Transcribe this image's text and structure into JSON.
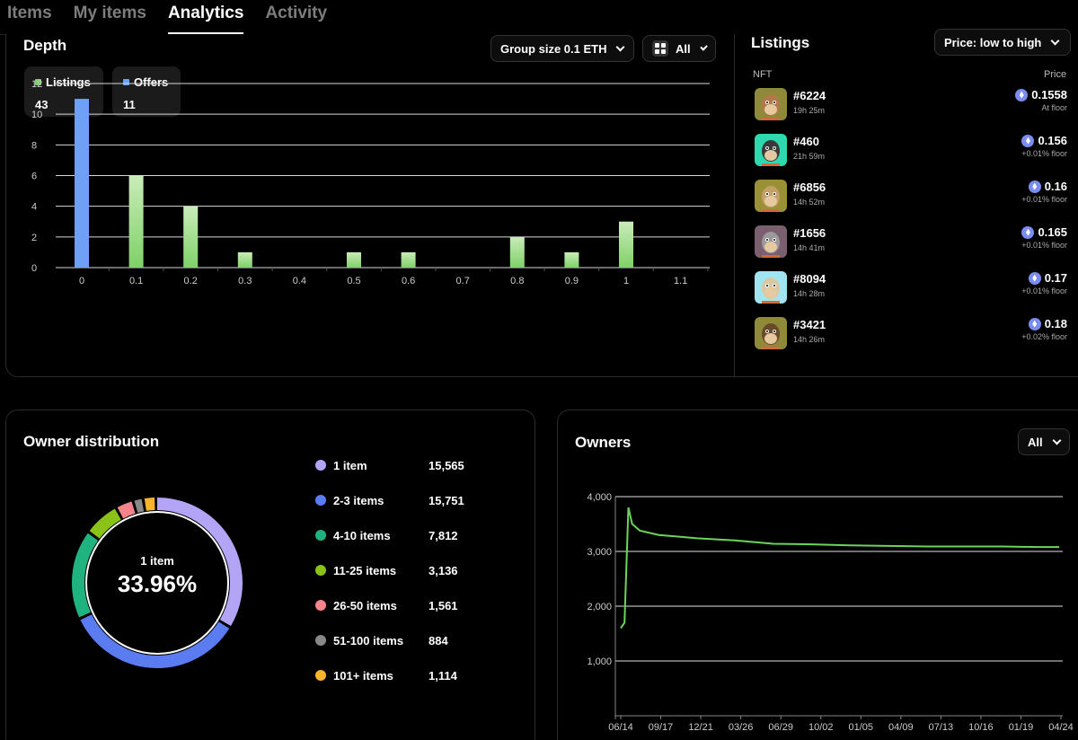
{
  "tabs": [
    "Items",
    "My items",
    "Analytics",
    "Activity"
  ],
  "depth": {
    "title": "Depth",
    "group_size": "Group size 0.1 ETH",
    "filter": "All",
    "listings_label": "Listings",
    "listings_count": "43",
    "offers_label": "Offers",
    "offers_count": "11",
    "colors": {
      "listings": "#7fd168",
      "offers": "#6ea1f5"
    }
  },
  "chart_data": [
    {
      "type": "bar",
      "title": "Depth",
      "categories": [
        "0",
        "0.1",
        "0.2",
        "0.3",
        "0.4",
        "0.5",
        "0.6",
        "0.7",
        "0.8",
        "0.9",
        "1",
        "1.1"
      ],
      "series": [
        {
          "name": "Offers",
          "values": [
            11,
            0,
            0,
            0,
            0,
            0,
            0,
            0,
            0,
            0,
            0,
            0
          ]
        },
        {
          "name": "Listings",
          "values": [
            0,
            6,
            4,
            1,
            0,
            1,
            1,
            0,
            2,
            1,
            3,
            0
          ]
        }
      ],
      "yticks": [
        "0",
        "2",
        "4",
        "6",
        "8",
        "10",
        "12"
      ],
      "ylim": [
        0,
        12
      ],
      "grid": true
    },
    {
      "type": "pie",
      "title": "Owner distribution",
      "center_label": "1 item",
      "center_value": "33.96%",
      "slices": [
        {
          "label": "1 item",
          "value": 15565,
          "display": "15,565",
          "color": "#b3a4f5"
        },
        {
          "label": "2-3 items",
          "value": 15751,
          "display": "15,751",
          "color": "#5b7cf0"
        },
        {
          "label": "4-10 items",
          "value": 7812,
          "display": "7,812",
          "color": "#1fb37f"
        },
        {
          "label": "11-25 items",
          "value": 3136,
          "display": "3,136",
          "color": "#8ac217"
        },
        {
          "label": "26-50 items",
          "value": 1561,
          "display": "1,561",
          "color": "#f7848a"
        },
        {
          "label": "51-100 items",
          "value": 884,
          "display": "884",
          "color": "#888888"
        },
        {
          "label": "101+ items",
          "value": 1114,
          "display": "1,114",
          "color": "#f9b52c"
        }
      ]
    },
    {
      "type": "line",
      "title": "Owners",
      "filter": "All",
      "x_ticks": [
        "06/14",
        "09/17",
        "12/21",
        "03/26",
        "06/29",
        "10/02",
        "01/05",
        "04/09",
        "07/13",
        "10/16",
        "01/19",
        "04/24"
      ],
      "yticks": [
        "1,000",
        "2,000",
        "3,000",
        "4,000"
      ],
      "ylim": [
        0,
        4000
      ],
      "grid": true,
      "color": "#6bd45a",
      "x": [
        0,
        0.1,
        0.2,
        0.3,
        0.5,
        1,
        1.5,
        2,
        3,
        4,
        5,
        6,
        7,
        8,
        9,
        10,
        10.9,
        11,
        11.5
      ],
      "y": [
        1600,
        1700,
        3800,
        3500,
        3380,
        3300,
        3270,
        3240,
        3200,
        3140,
        3130,
        3110,
        3100,
        3090,
        3090,
        3090,
        3080,
        3080,
        3080
      ]
    }
  ],
  "listings": {
    "title": "Listings",
    "sort": "Price: low to high",
    "col_nft": "NFT",
    "col_price": "Price",
    "rows": [
      {
        "name": "#6224",
        "time": "19h 25m",
        "price": "0.1558",
        "note": "At floor",
        "bg": "#8f8a3a",
        "fur": "#b07a4a"
      },
      {
        "name": "#460",
        "time": "21h 59m",
        "price": "0.156",
        "note": "+0.01% floor",
        "bg": "#2ed9b0",
        "fur": "#3a3a3a"
      },
      {
        "name": "#6856",
        "time": "14h 52m",
        "price": "0.16",
        "note": "+0.01% floor",
        "bg": "#9a9036",
        "fur": "#c3a06a"
      },
      {
        "name": "#1656",
        "time": "14h 41m",
        "price": "0.165",
        "note": "+0.01% floor",
        "bg": "#7b5f6f",
        "fur": "#9a9a9a"
      },
      {
        "name": "#8094",
        "time": "14h 28m",
        "price": "0.17",
        "note": "+0.01% floor",
        "bg": "#9fe4ef",
        "fur": "#d8c9a5"
      },
      {
        "name": "#3421",
        "time": "14h 26m",
        "price": "0.18",
        "note": "+0.02% floor",
        "bg": "#8f8a3a",
        "fur": "#6b4a2a"
      }
    ]
  }
}
